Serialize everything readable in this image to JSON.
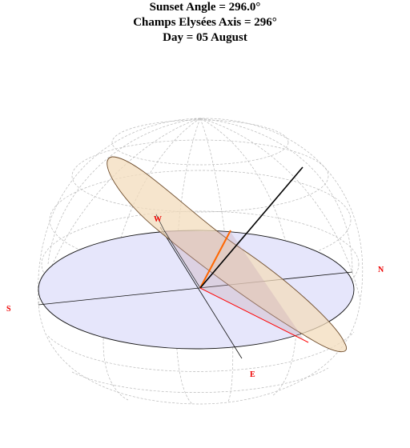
{
  "header": {
    "line1": "Sunset Angle = 296.0°",
    "line2": "Champs Elysées Axis = 296°",
    "line3": "Day = 05 August"
  },
  "labels": {
    "west": "W",
    "north": "N",
    "south": "S",
    "east": "E"
  },
  "colors": {
    "horizon_fill": "#e6e6fb",
    "sun_plane_fill": "#f3dcbc",
    "sun_plane_stroke": "#6d4b2a",
    "sun_ray": "#ff6600",
    "axis_line": "#ff0000",
    "compass_text": "#ee0000",
    "grid": "#b8b8b8"
  }
}
